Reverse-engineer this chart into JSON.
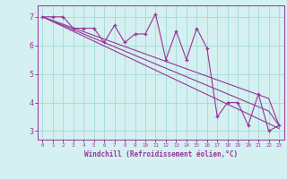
{
  "title": "Windchill (Refroidissement éolien,°C)",
  "hours": [
    0,
    1,
    2,
    3,
    4,
    5,
    6,
    7,
    8,
    9,
    10,
    11,
    12,
    13,
    14,
    15,
    16,
    17,
    18,
    19,
    20,
    21,
    22,
    23
  ],
  "windchill": [
    7.0,
    7.0,
    7.0,
    6.6,
    6.6,
    6.6,
    6.1,
    6.7,
    6.1,
    6.4,
    6.4,
    7.1,
    5.5,
    6.5,
    5.5,
    6.6,
    5.9,
    3.5,
    4.0,
    4.0,
    3.2,
    4.3,
    3.0,
    3.2
  ],
  "trend1": [
    7.0,
    6.87,
    6.74,
    6.61,
    6.48,
    6.35,
    6.22,
    6.09,
    5.96,
    5.83,
    5.7,
    5.57,
    5.44,
    5.31,
    5.18,
    5.05,
    4.92,
    4.79,
    4.66,
    4.53,
    4.4,
    4.27,
    4.14,
    3.2
  ],
  "trend2": [
    7.0,
    6.85,
    6.7,
    6.55,
    6.4,
    6.25,
    6.1,
    5.95,
    5.8,
    5.65,
    5.5,
    5.35,
    5.2,
    5.05,
    4.9,
    4.75,
    4.6,
    4.45,
    4.3,
    4.15,
    4.0,
    3.85,
    3.7,
    3.2
  ],
  "trend3": [
    7.0,
    6.83,
    6.66,
    6.49,
    6.32,
    6.15,
    5.98,
    5.81,
    5.64,
    5.47,
    5.3,
    5.13,
    4.96,
    4.79,
    4.62,
    4.45,
    4.28,
    4.11,
    3.94,
    3.77,
    3.6,
    3.43,
    3.26,
    3.09
  ],
  "line_color": "#993399",
  "bg_color": "#d4f0f0",
  "grid_color": "#aadddd",
  "ylim": [
    2.7,
    7.4
  ],
  "yticks": [
    3,
    4,
    5,
    6,
    7
  ],
  "x_labels": [
    "0",
    "1",
    "2",
    "3",
    "4",
    "5",
    "6",
    "7",
    "8",
    "9",
    "10",
    "11",
    "12",
    "13",
    "14",
    "15",
    "16",
    "17",
    "18",
    "19",
    "20",
    "21",
    "22",
    "23"
  ]
}
